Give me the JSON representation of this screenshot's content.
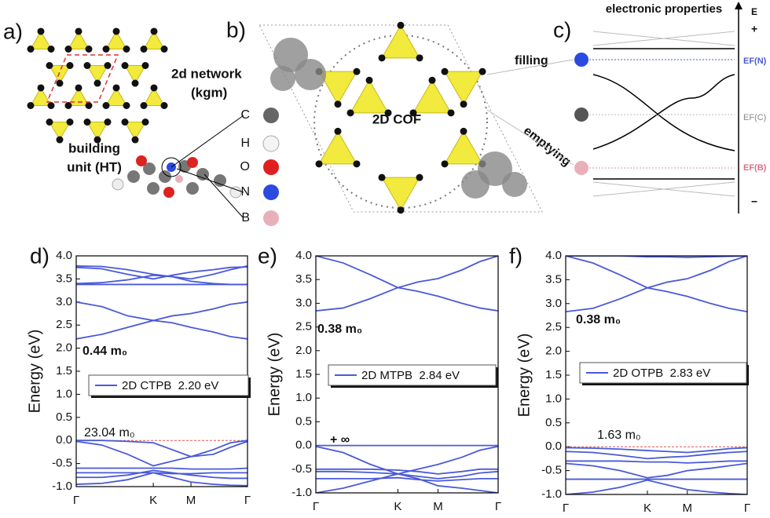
{
  "panels": {
    "a": {
      "label": "a)",
      "network": [
        "2d network",
        "(kgm)"
      ],
      "unit": [
        "building",
        "unit (HT)"
      ]
    },
    "atoms": [
      "C",
      "H",
      "O",
      "N",
      "B"
    ],
    "b": {
      "label": "b)",
      "center": "2D COF",
      "filling": "filling",
      "emptying": "emptying"
    },
    "c": {
      "label": "c)",
      "title": "electronic properties",
      "axis": "E",
      "plus": "+",
      "minus": "−",
      "levels": [
        "EF(N)",
        "EF(C)",
        "EF(B)"
      ]
    }
  },
  "chart_data": [
    {
      "type": "line",
      "panel_label": "d)",
      "ylabel": "Energy (eV)",
      "x": [
        0,
        0.15,
        0.3,
        0.45,
        0.56,
        0.67,
        0.8,
        0.9,
        1
      ],
      "xlim": [
        0,
        1
      ],
      "xticks": [
        {
          "value": 0,
          "label": "Γ"
        },
        {
          "value": 0.45,
          "label": "K"
        },
        {
          "value": 0.67,
          "label": "M"
        },
        {
          "value": 1,
          "label": "Γ"
        }
      ],
      "ylim": [
        -1,
        4
      ],
      "yticks": [
        {
          "value": 4,
          "label": "4.0"
        },
        3.5,
        {
          "value": 3,
          "label": "3.0"
        },
        2.5,
        {
          "value": 2,
          "label": "2.0"
        },
        1.5,
        {
          "value": 1,
          "label": "1.0"
        },
        0.5,
        {
          "value": 0,
          "label": "0.0"
        },
        -0.5,
        {
          "value": -1,
          "label": "-1.0"
        }
      ],
      "reference_line": 0,
      "reference_color": "#d9534f",
      "annotations": [
        "0.44 m₀",
        "23.04 m₀"
      ],
      "series": [
        {
          "name": "2D CTPB  2.20 eV",
          "color": "#4a5ad8",
          "values": [
            2.2,
            2.3,
            2.45,
            2.6,
            2.55,
            2.45,
            2.35,
            2.25,
            2.2
          ]
        },
        {
          "color": "#4a5ad8",
          "values": [
            3.0,
            2.9,
            2.7,
            2.6,
            2.7,
            2.75,
            2.85,
            2.95,
            3.0
          ]
        },
        {
          "color": "#4a5ad8",
          "values": [
            3.78,
            3.77,
            3.7,
            3.6,
            3.55,
            3.5,
            3.6,
            3.7,
            3.78
          ]
        },
        {
          "color": "#4a5ad8",
          "values": [
            3.75,
            3.72,
            3.6,
            3.5,
            3.58,
            3.65,
            3.7,
            3.75,
            3.76
          ]
        },
        {
          "color": "#4a5ad8",
          "values": [
            3.38,
            3.38,
            3.38,
            3.38,
            3.38,
            3.38,
            3.38,
            3.38,
            3.38
          ]
        },
        {
          "color": "#4a5ad8",
          "values": [
            3.4,
            3.42,
            3.48,
            3.58,
            3.55,
            3.45,
            3.4,
            3.38,
            3.38
          ]
        },
        {
          "color": "#4a5ad8",
          "values": [
            0,
            0,
            -0.02,
            -0.05,
            -0.2,
            -0.35,
            -0.2,
            -0.05,
            0
          ]
        },
        {
          "color": "#4a5ad8",
          "values": [
            -0.02,
            -0.1,
            -0.3,
            -0.55,
            -0.45,
            -0.35,
            -0.3,
            -0.15,
            -0.02
          ]
        },
        {
          "color": "#4a5ad8",
          "values": [
            -0.6,
            -0.6,
            -0.6,
            -0.6,
            -0.6,
            -0.62,
            -0.62,
            -0.62,
            -0.6
          ]
        },
        {
          "color": "#4a5ad8",
          "values": [
            -0.7,
            -0.7,
            -0.7,
            -0.7,
            -0.72,
            -0.72,
            -0.7,
            -0.7,
            -0.7
          ]
        },
        {
          "color": "#4a5ad8",
          "values": [
            -0.8,
            -0.8,
            -0.75,
            -0.65,
            -0.7,
            -0.75,
            -0.8,
            -0.82,
            -0.82
          ]
        },
        {
          "color": "#4a5ad8",
          "values": [
            -0.95,
            -0.93,
            -0.85,
            -0.7,
            -0.8,
            -0.9,
            -0.95,
            -0.97,
            -0.98
          ]
        }
      ]
    },
    {
      "type": "line",
      "panel_label": "e)",
      "ylabel": "Energy (eV)",
      "x": [
        0,
        0.15,
        0.3,
        0.45,
        0.56,
        0.67,
        0.8,
        0.9,
        1
      ],
      "xlim": [
        0,
        1
      ],
      "xticks": [
        {
          "value": 0,
          "label": "Γ"
        },
        {
          "value": 0.45,
          "label": "K"
        },
        {
          "value": 0.67,
          "label": "M"
        },
        {
          "value": 1,
          "label": "Γ"
        }
      ],
      "ylim": [
        -1,
        4
      ],
      "yticks": [
        {
          "value": 4,
          "label": "4.0"
        },
        3.5,
        {
          "value": 3,
          "label": "3.0"
        },
        2.5,
        {
          "value": 2,
          "label": "2.0"
        },
        1.5,
        {
          "value": 1,
          "label": "1.0"
        },
        0.5,
        {
          "value": 0,
          "label": "0.0"
        },
        -0.5,
        {
          "value": -1,
          "label": "-1.0"
        }
      ],
      "reference_line": 0,
      "reference_color": "#d9534f",
      "annotations": [
        "0.38 m₀",
        "+ ∞"
      ],
      "series": [
        {
          "name": "2D MTPB  2.84 eV",
          "color": "#4a5ad8",
          "values": [
            2.84,
            2.9,
            3.1,
            3.33,
            3.45,
            3.52,
            3.7,
            3.88,
            4.0
          ]
        },
        {
          "color": "#4a5ad8",
          "values": [
            4.0,
            3.85,
            3.6,
            3.33,
            3.25,
            3.15,
            3.0,
            2.9,
            2.84
          ]
        },
        {
          "color": "#4a5ad8",
          "values": [
            0,
            0,
            0,
            0,
            0,
            0,
            0,
            0,
            0
          ]
        },
        {
          "color": "#4a5ad8",
          "values": [
            -0.02,
            -0.15,
            -0.4,
            -0.6,
            -0.5,
            -0.4,
            -0.25,
            -0.1,
            -0.02
          ]
        },
        {
          "color": "#4a5ad8",
          "values": [
            -0.5,
            -0.5,
            -0.5,
            -0.52,
            -0.55,
            -0.6,
            -0.55,
            -0.5,
            -0.5
          ]
        },
        {
          "color": "#4a5ad8",
          "values": [
            -0.55,
            -0.55,
            -0.57,
            -0.6,
            -0.65,
            -0.7,
            -0.65,
            -0.58,
            -0.55
          ]
        },
        {
          "color": "#4a5ad8",
          "values": [
            -0.7,
            -0.7,
            -0.7,
            -0.68,
            -0.72,
            -0.75,
            -0.72,
            -0.7,
            -0.7
          ]
        },
        {
          "color": "#4a5ad8",
          "values": [
            -1,
            -0.9,
            -0.75,
            -0.6,
            -0.7,
            -0.85,
            -0.9,
            -0.95,
            -1
          ]
        }
      ]
    },
    {
      "type": "line",
      "panel_label": "f)",
      "ylabel": "Energy (eV)",
      "x": [
        0,
        0.15,
        0.3,
        0.45,
        0.56,
        0.67,
        0.8,
        0.9,
        1
      ],
      "xlim": [
        0,
        1
      ],
      "xticks": [
        {
          "value": 0,
          "label": "Γ"
        },
        {
          "value": 0.45,
          "label": "K"
        },
        {
          "value": 0.67,
          "label": "M"
        },
        {
          "value": 1,
          "label": "Γ"
        }
      ],
      "ylim": [
        -1,
        4
      ],
      "yticks": [
        {
          "value": 4,
          "label": "4.0"
        },
        3.5,
        {
          "value": 3,
          "label": "3.0"
        },
        2.5,
        {
          "value": 2,
          "label": "2.0"
        },
        1.5,
        {
          "value": 1,
          "label": "1.0"
        },
        0.5,
        {
          "value": 0,
          "label": "0.0"
        },
        -0.5,
        {
          "value": -1,
          "label": "-1.0"
        }
      ],
      "reference_line": 0,
      "reference_color": "#d9534f",
      "annotations": [
        "0.38 m₀",
        "1.63 m₀"
      ],
      "series": [
        {
          "name": "2D OTPB  2.83 eV",
          "color": "#4a5ad8",
          "values": [
            2.83,
            2.9,
            3.1,
            3.33,
            3.45,
            3.52,
            3.7,
            3.88,
            4.0
          ]
        },
        {
          "color": "#4a5ad8",
          "values": [
            4.0,
            3.85,
            3.6,
            3.33,
            3.25,
            3.15,
            3.0,
            2.9,
            2.83
          ]
        },
        {
          "color": "#4a5ad8",
          "values": [
            4.0,
            4.0,
            4.0,
            3.98,
            3.98,
            3.97,
            3.98,
            3.99,
            4.0
          ]
        },
        {
          "color": "#4a5ad8",
          "values": [
            -0.02,
            -0.03,
            -0.05,
            -0.08,
            -0.1,
            -0.12,
            -0.08,
            -0.04,
            -0.02
          ]
        },
        {
          "color": "#4a5ad8",
          "values": [
            -0.1,
            -0.12,
            -0.18,
            -0.25,
            -0.22,
            -0.2,
            -0.15,
            -0.12,
            -0.1
          ]
        },
        {
          "color": "#4a5ad8",
          "values": [
            -0.3,
            -0.3,
            -0.3,
            -0.32,
            -0.32,
            -0.34,
            -0.32,
            -0.3,
            -0.3
          ]
        },
        {
          "color": "#4a5ad8",
          "values": [
            -0.35,
            -0.4,
            -0.5,
            -0.65,
            -0.6,
            -0.5,
            -0.45,
            -0.4,
            -0.35
          ]
        },
        {
          "color": "#4a5ad8",
          "values": [
            -0.68,
            -0.68,
            -0.68,
            -0.68,
            -0.68,
            -0.68,
            -0.68,
            -0.68,
            -0.68
          ]
        },
        {
          "color": "#4a5ad8",
          "values": [
            -1,
            -0.95,
            -0.85,
            -0.7,
            -0.8,
            -0.9,
            -0.95,
            -0.98,
            -1
          ]
        }
      ]
    }
  ]
}
